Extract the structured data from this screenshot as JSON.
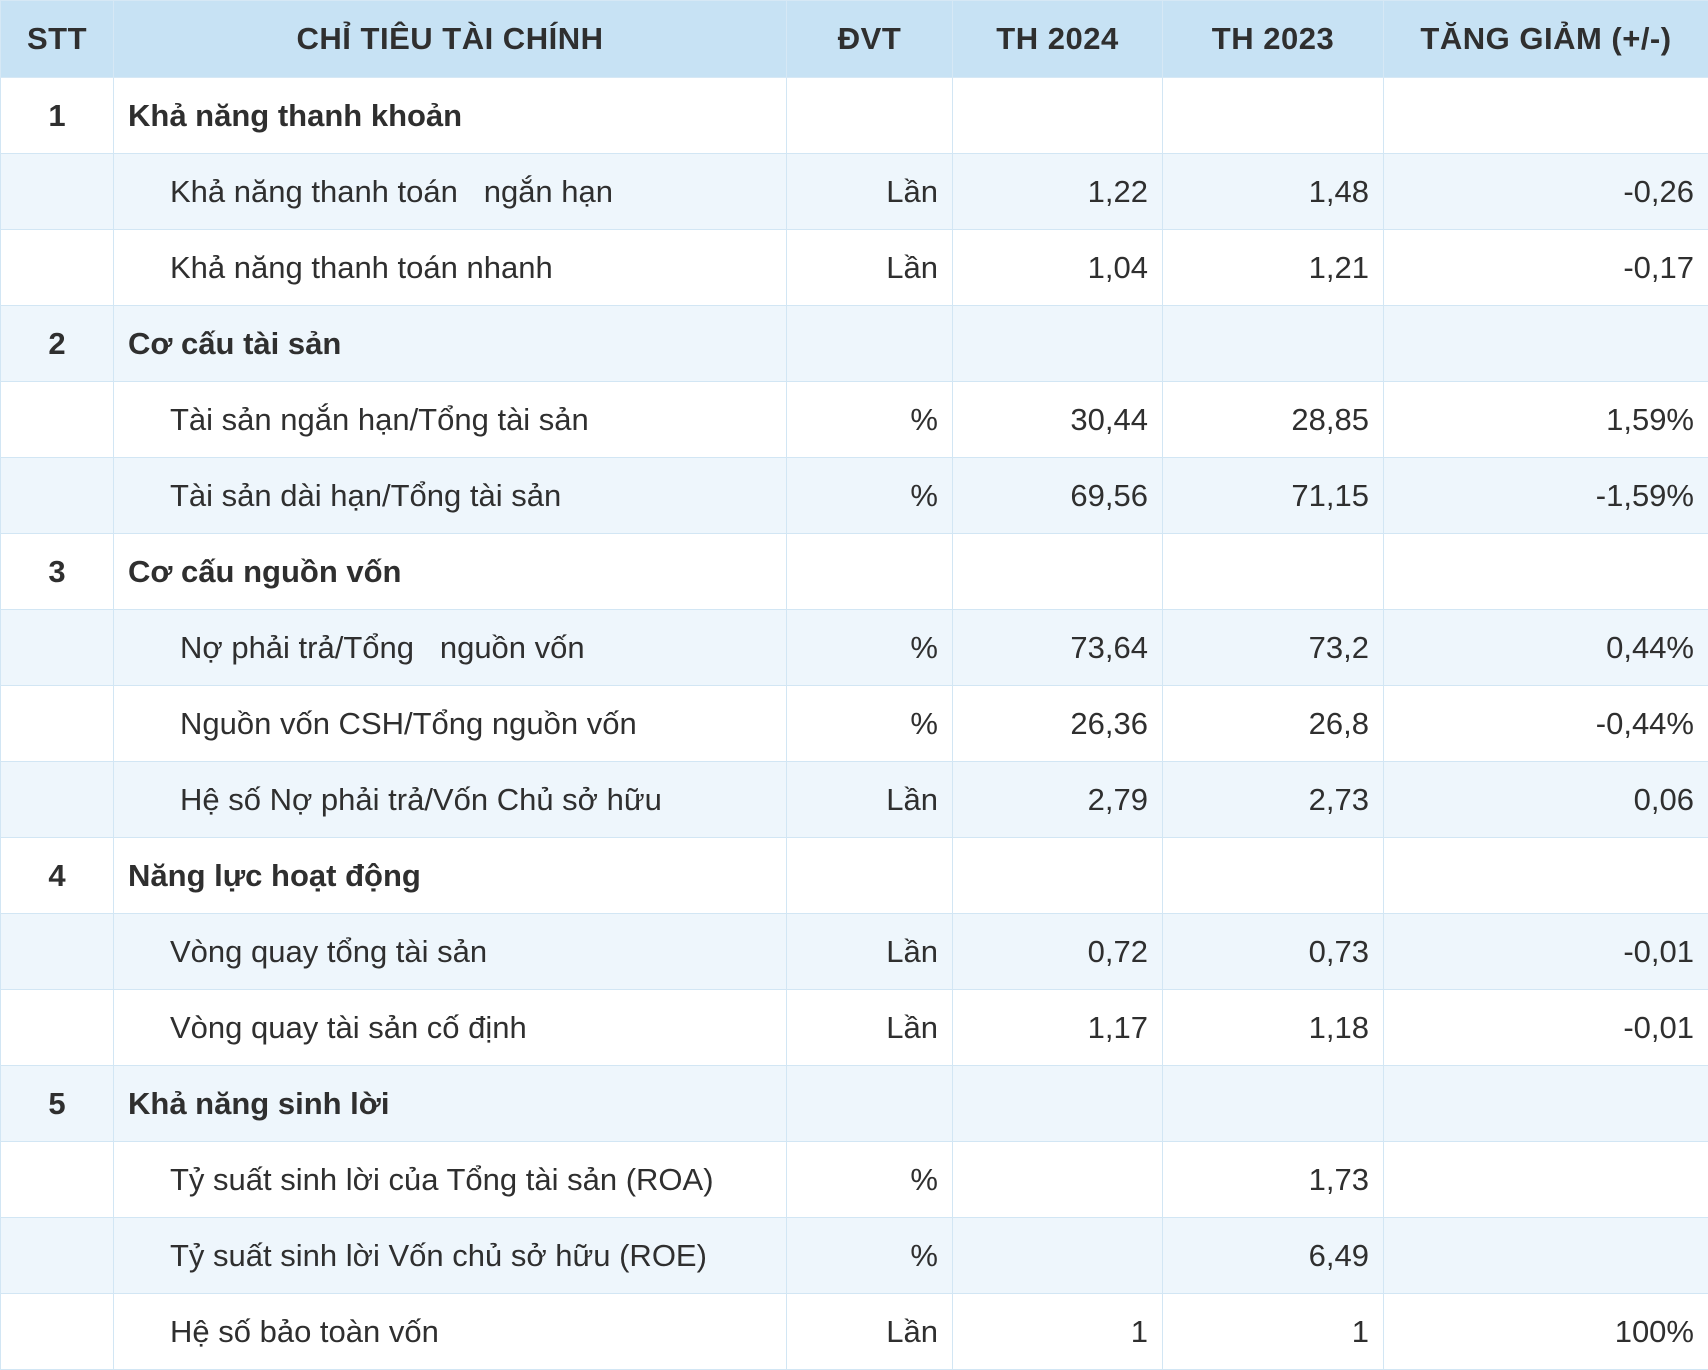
{
  "header": {
    "stt": "STT",
    "indicator": "CHỈ TIÊU TÀI CHÍNH",
    "unit": "ĐVT",
    "th2024": "TH 2024",
    "th2023": "TH 2023",
    "change": "TĂNG GIẢM (+/-)"
  },
  "rows": [
    {
      "stt": "1",
      "name": "Khả năng thanh khoản",
      "unit": "",
      "th2024": "",
      "th2023": "",
      "change": ""
    },
    {
      "stt": "",
      "name": "Khả năng thanh toán   ngắn hạn",
      "unit": "Lần",
      "th2024": "1,22",
      "th2023": "1,48",
      "change": "-0,26"
    },
    {
      "stt": "",
      "name": "Khả năng thanh toán nhanh",
      "unit": "Lần",
      "th2024": "1,04",
      "th2023": "1,21",
      "change": "-0,17"
    },
    {
      "stt": "2",
      "name": "Cơ cấu tài sản",
      "unit": "",
      "th2024": "",
      "th2023": "",
      "change": ""
    },
    {
      "stt": "",
      "name": "Tài sản ngắn hạn/Tổng tài sản",
      "unit": "%",
      "th2024": "30,44",
      "th2023": "28,85",
      "change": "1,59%"
    },
    {
      "stt": "",
      "name": "Tài sản dài hạn/Tổng tài sản",
      "unit": "%",
      "th2024": "69,56",
      "th2023": "71,15",
      "change": "-1,59%"
    },
    {
      "stt": "3",
      "name": "Cơ cấu nguồn vốn",
      "unit": "",
      "th2024": "",
      "th2023": "",
      "change": ""
    },
    {
      "stt": "",
      "name": "Nợ phải trả/Tổng   nguồn vốn",
      "unit": "%",
      "th2024": "73,64",
      "th2023": "73,2",
      "change": "0,44%"
    },
    {
      "stt": "",
      "name": "Nguồn vốn CSH/Tổng nguồn vốn",
      "unit": "%",
      "th2024": "26,36",
      "th2023": "26,8",
      "change": "-0,44%"
    },
    {
      "stt": "",
      "name": "Hệ số Nợ phải trả/Vốn Chủ sở hữu",
      "unit": "Lần",
      "th2024": "2,79",
      "th2023": "2,73",
      "change": "0,06"
    },
    {
      "stt": "4",
      "name": "Năng lực hoạt động",
      "unit": "",
      "th2024": "",
      "th2023": "",
      "change": ""
    },
    {
      "stt": "",
      "name": "Vòng quay tổng tài sản",
      "unit": "Lần",
      "th2024": "0,72",
      "th2023": "0,73",
      "change": "-0,01"
    },
    {
      "stt": "",
      "name": "Vòng quay tài sản cố định",
      "unit": "Lần",
      "th2024": "1,17",
      "th2023": "1,18",
      "change": "-0,01"
    },
    {
      "stt": "5",
      "name": "Khả năng sinh lời",
      "unit": "",
      "th2024": "",
      "th2023": "",
      "change": ""
    },
    {
      "stt": "",
      "name": "Tỷ suất sinh lời của Tổng tài sản (ROA)",
      "unit": "%",
      "th2024": "",
      "th2023": "1,73",
      "change": ""
    },
    {
      "stt": "",
      "name": "Tỷ suất sinh lời Vốn chủ sở hữu (ROE)",
      "unit": "%",
      "th2024": "",
      "th2023": "6,49",
      "change": ""
    },
    {
      "stt": "",
      "name": "Hệ số bảo toàn vốn",
      "unit": "Lần",
      "th2024": "1",
      "th2023": "1",
      "change": "100%"
    }
  ]
}
